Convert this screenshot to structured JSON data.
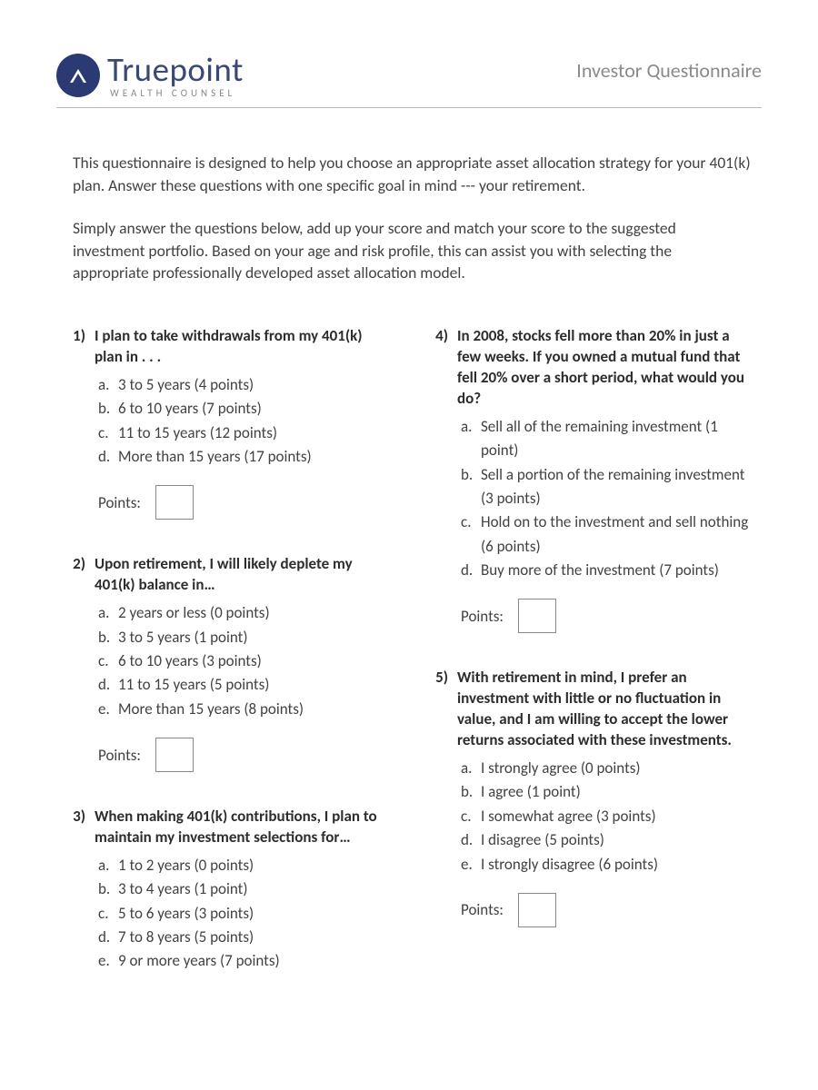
{
  "colors": {
    "brand_navy": "#2c3a73",
    "text_dark": "#2d2d2d",
    "text_body": "#424242",
    "text_muted": "#8a8a8a",
    "rule": "#b8b8b8",
    "box_border": "#888888",
    "background": "#ffffff"
  },
  "typography": {
    "body_fontsize_pt": 13,
    "logo_title_fontsize_pt": 28,
    "doc_title_fontsize_pt": 17
  },
  "logo": {
    "title": "Truepoint",
    "subtitle": "WEALTH COUNSEL",
    "icon_name": "caret-up-icon"
  },
  "doc_title": "Investor Questionnaire",
  "intro": [
    "This questionnaire is designed to help you choose an appropriate asset allocation strategy for your 401(k) plan. Answer these questions with one specific goal in mind --- your retirement.",
    "Simply answer the questions below, add up your score and match your score to the suggested investment portfolio. Based on your age and risk profile, this can assist you with selecting the appropriate professionally developed asset allocation model."
  ],
  "points_label": "Points:",
  "questions_left": [
    {
      "num": "1)",
      "text": "I plan to take withdrawals from my 401(k) plan in . . .",
      "options": [
        {
          "l": "a.",
          "t": "3 to 5 years (4 points)"
        },
        {
          "l": "b.",
          "t": "6 to 10 years (7 points)"
        },
        {
          "l": "c.",
          "t": "11 to 15 years (12 points)"
        },
        {
          "l": "d.",
          "t": "More than 15 years (17 points)"
        }
      ]
    },
    {
      "num": "2)",
      "text": "Upon retirement, I will likely deplete my 401(k) balance in…",
      "options": [
        {
          "l": "a.",
          "t": "2 years or less (0 points)"
        },
        {
          "l": "b.",
          "t": "3 to 5 years (1 point)"
        },
        {
          "l": "c.",
          "t": "6 to 10 years (3 points)"
        },
        {
          "l": "d.",
          "t": "11 to 15 years (5 points)"
        },
        {
          "l": "e.",
          "t": "More than 15 years (8 points)"
        }
      ]
    },
    {
      "num": "3)",
      "text": "When making 401(k) contributions, I plan to maintain my investment selections for…",
      "options": [
        {
          "l": "a.",
          "t": "1 to 2 years (0 points)"
        },
        {
          "l": "b.",
          "t": "3 to 4 years (1 point)"
        },
        {
          "l": "c.",
          "t": "5 to 6 years (3 points)"
        },
        {
          "l": "d.",
          "t": "7 to 8 years (5 points)"
        },
        {
          "l": "e.",
          "t": "9 or more years (7 points)"
        }
      ],
      "no_points_box": true
    }
  ],
  "questions_right": [
    {
      "num": "4)",
      "text": "In 2008, stocks fell more than 20% in just a few weeks. If you owned a mutual fund that fell 20% over a short period, what would you do?",
      "options": [
        {
          "l": "a.",
          "t": "Sell all of the remaining investment (1 point)"
        },
        {
          "l": "b.",
          "t": "Sell a portion of the remaining investment (3 points)"
        },
        {
          "l": "c.",
          "t": "Hold on to the investment and sell nothing (6 points)"
        },
        {
          "l": "d.",
          "t": "Buy more of the investment (7 points)"
        }
      ]
    },
    {
      "num": "5)",
      "text": "With retirement in mind, I prefer an investment with little or no fluctuation in value, and I am willing to accept the lower returns associated with these investments.",
      "options": [
        {
          "l": "a.",
          "t": "I strongly agree (0 points)"
        },
        {
          "l": "b.",
          "t": "I agree (1 point)"
        },
        {
          "l": "c.",
          "t": "I somewhat agree (3 points)"
        },
        {
          "l": "d.",
          "t": "I disagree (5 points)"
        },
        {
          "l": "e.",
          "t": "I strongly disagree (6 points)"
        }
      ]
    }
  ]
}
